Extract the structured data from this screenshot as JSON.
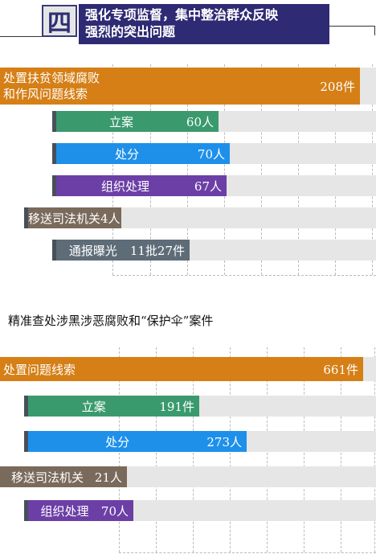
{
  "header": {
    "badge": "四",
    "title_line1": "强化专项监督，集中整治群众反映",
    "title_line2": "强烈的突出问题"
  },
  "section2": {
    "title": "精准查处涉黑涉恶腐败和“保护伞”案件"
  },
  "colors": {
    "orange": "#d57f16",
    "green": "#3a9a6e",
    "blue": "#1e90ea",
    "purple": "#6c3fa6",
    "brown": "#7a6a5b",
    "slate": "#5e6c78",
    "band": "#e6e6e6"
  },
  "chart_data": [
    {
      "type": "bar",
      "orientation": "horizontal",
      "categories": [
        "处置扶贫领域腐败和作风问题线索",
        "立案",
        "处分",
        "组织处理",
        "移送司法机关",
        "通报曝光"
      ],
      "category_lines": [
        [
          "处置扶贫领域腐败",
          "和作风问题线索"
        ],
        [
          "立案"
        ],
        [
          "处分"
        ],
        [
          "组织处理"
        ],
        [
          "移送司法机关"
        ],
        [
          "通报曝光"
        ]
      ],
      "values": [
        208,
        60,
        70,
        67,
        4,
        27
      ],
      "value_labels": [
        "208件",
        "60人",
        "70人",
        "67人",
        "4人",
        "11批27件"
      ],
      "colors": [
        "#d57f16",
        "#3a9a6e",
        "#1e90ea",
        "#6c3fa6",
        "#7a6a5b",
        "#5e6c78"
      ]
    },
    {
      "type": "bar",
      "orientation": "horizontal",
      "title": "精准查处涉黑涉恶腐败和“保护伞”案件",
      "categories": [
        "处置问题线索",
        "立案",
        "处分",
        "移送司法机关",
        "组织处理"
      ],
      "values": [
        661,
        191,
        273,
        21,
        70
      ],
      "value_labels": [
        "661件",
        "191件",
        "273人",
        "21人",
        "70人"
      ],
      "colors": [
        "#d57f16",
        "#3a9a6e",
        "#1e90ea",
        "#7a6a5b",
        "#6c3fa6"
      ]
    }
  ]
}
